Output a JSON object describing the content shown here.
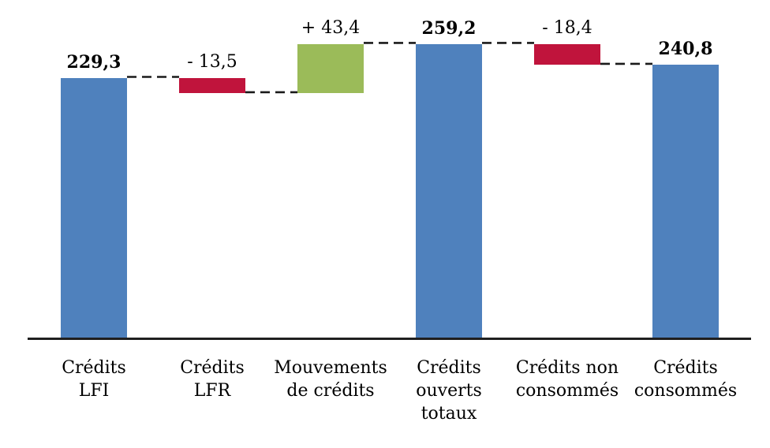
{
  "chart_data": {
    "type": "bar",
    "subtype": "waterfall",
    "title": "",
    "xlabel": "",
    "ylabel": "",
    "ylim": [
      0,
      290
    ],
    "grid": false,
    "legend": false,
    "number_format": "french-decimal-comma",
    "colors": {
      "total": "#4F81BD",
      "decrease": "#C0143C",
      "increase": "#9BBB59",
      "axis": "#1F1F1F",
      "connector": "#1A1A1A",
      "text": "#000000"
    },
    "categories": [
      "Crédits LFI",
      "Crédits LFR",
      "Mouvements de crédits",
      "Crédits ouverts totaux",
      "Crédits non consommés",
      "Crédits consommés"
    ],
    "steps": [
      {
        "name": "credits-lfi",
        "label_lines": [
          "Crédits",
          "LFI"
        ],
        "role": "total",
        "value": 229.3,
        "value_label": "229,3",
        "value_bold": true
      },
      {
        "name": "credits-lfr",
        "label_lines": [
          "Crédits",
          "LFR"
        ],
        "role": "decrease",
        "value": -13.5,
        "value_label": "- 13,5",
        "value_bold": false
      },
      {
        "name": "mouvements-de-credits",
        "label_lines": [
          "Mouvements",
          "de crédits"
        ],
        "role": "increase",
        "value": 43.4,
        "value_label": "+ 43,4",
        "value_bold": false
      },
      {
        "name": "credits-ouverts-totaux",
        "label_lines": [
          "Crédits",
          "ouverts",
          "totaux"
        ],
        "role": "total",
        "value": 259.2,
        "value_label": "259,2",
        "value_bold": true
      },
      {
        "name": "credits-non-consommes",
        "label_lines": [
          "Crédits non",
          "consommés"
        ],
        "role": "decrease",
        "value": -18.4,
        "value_label": "- 18,4",
        "value_bold": false
      },
      {
        "name": "credits-consommes",
        "label_lines": [
          "Crédits",
          "consommés"
        ],
        "role": "total",
        "value": 240.8,
        "value_label": "240,8",
        "value_bold": true
      }
    ]
  }
}
